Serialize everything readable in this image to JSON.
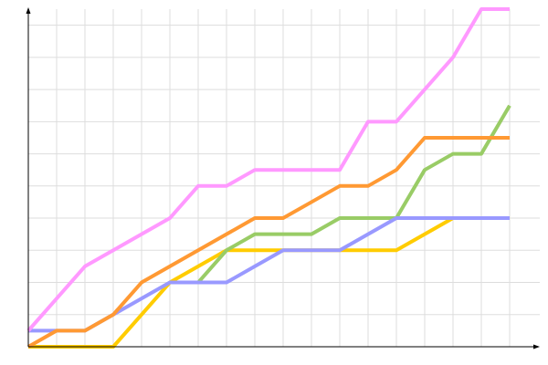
{
  "chart_data": {
    "type": "line",
    "title": "",
    "xlabel": "",
    "ylabel": "",
    "x": [
      0,
      1,
      2,
      3,
      4,
      5,
      6,
      7,
      8,
      9,
      10,
      11,
      12,
      13,
      14,
      15,
      16,
      17
    ],
    "xlim": [
      0,
      17
    ],
    "ylim": [
      0,
      21
    ],
    "grid": true,
    "legend": "none",
    "series": [
      {
        "color": "#ffcc00",
        "values": [
          0,
          0,
          0,
          0,
          2,
          4,
          5,
          6,
          6,
          6,
          6,
          6,
          6,
          6,
          7,
          8,
          8,
          8
        ]
      },
      {
        "color": "#99cc66",
        "values": [
          null,
          null,
          null,
          null,
          null,
          null,
          4,
          6,
          7,
          7,
          7,
          8,
          8,
          8,
          11,
          12,
          12,
          15
        ]
      },
      {
        "color": "#9999ff",
        "values": [
          1,
          1,
          1,
          2,
          3,
          4,
          4,
          4,
          5,
          6,
          6,
          6,
          7,
          8,
          8,
          8,
          8,
          8
        ]
      },
      {
        "color": "#ff9933",
        "values": [
          0,
          1,
          1,
          2,
          4,
          5,
          6,
          7,
          8,
          8,
          9,
          10,
          10,
          11,
          13,
          13,
          13,
          13
        ]
      },
      {
        "color": "#ff99ff",
        "values": [
          1,
          3,
          5,
          6,
          7,
          8,
          10,
          10,
          11,
          11,
          11,
          11,
          14,
          14,
          16,
          18,
          21,
          21
        ]
      }
    ]
  }
}
